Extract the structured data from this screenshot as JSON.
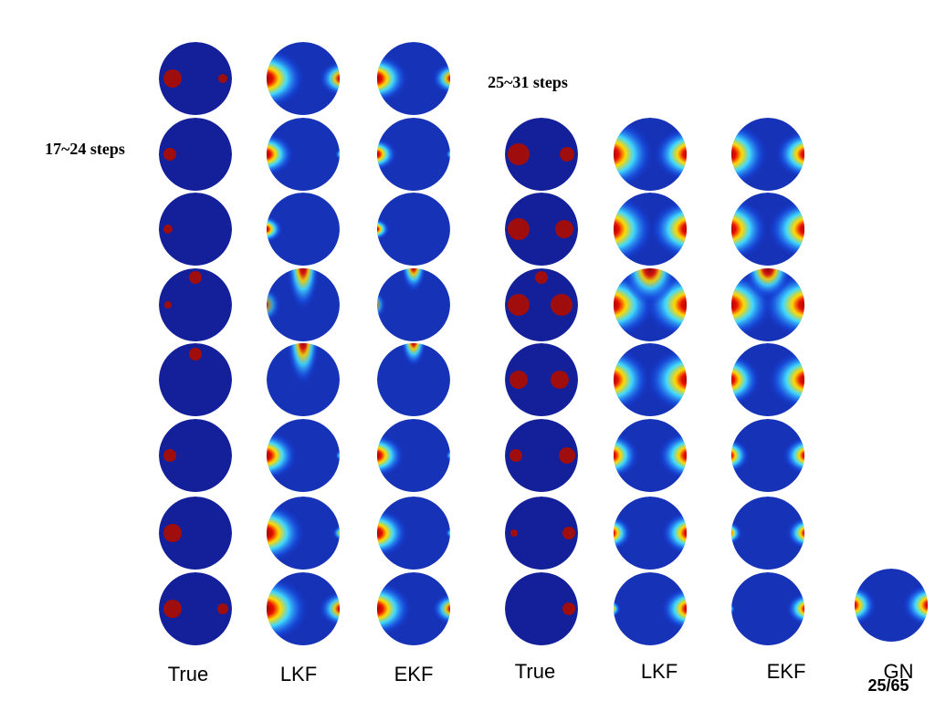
{
  "left_group": {
    "caption": "17~24 steps",
    "columns": [
      "True",
      "LKF",
      "EKF"
    ]
  },
  "right_group": {
    "caption": "25~31 steps",
    "columns": [
      "True",
      "LKF",
      "EKF",
      "GN"
    ]
  },
  "page_number": "25/65"
}
